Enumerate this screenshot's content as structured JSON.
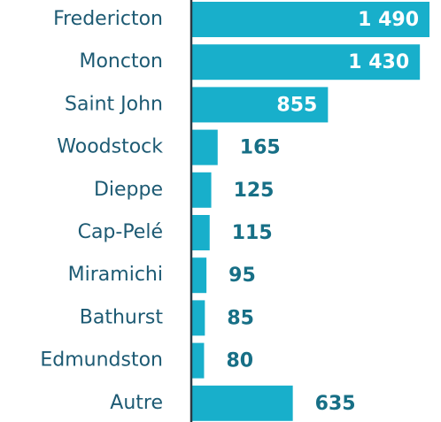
{
  "chart_data": {
    "type": "barh",
    "categories": [
      "Fredericton",
      "Moncton",
      "Saint John",
      "Woodstock",
      "Dieppe",
      "Cap-Pelé",
      "Miramichi",
      "Bathurst",
      "Edmundston",
      "Autre"
    ],
    "values": [
      1490,
      1430,
      855,
      165,
      125,
      115,
      95,
      85,
      80,
      635
    ],
    "value_labels": [
      "1 490",
      "1 430",
      "855",
      "165",
      "125",
      "115",
      "95",
      "85",
      "80",
      "635"
    ],
    "color": "#18afcb"
  }
}
